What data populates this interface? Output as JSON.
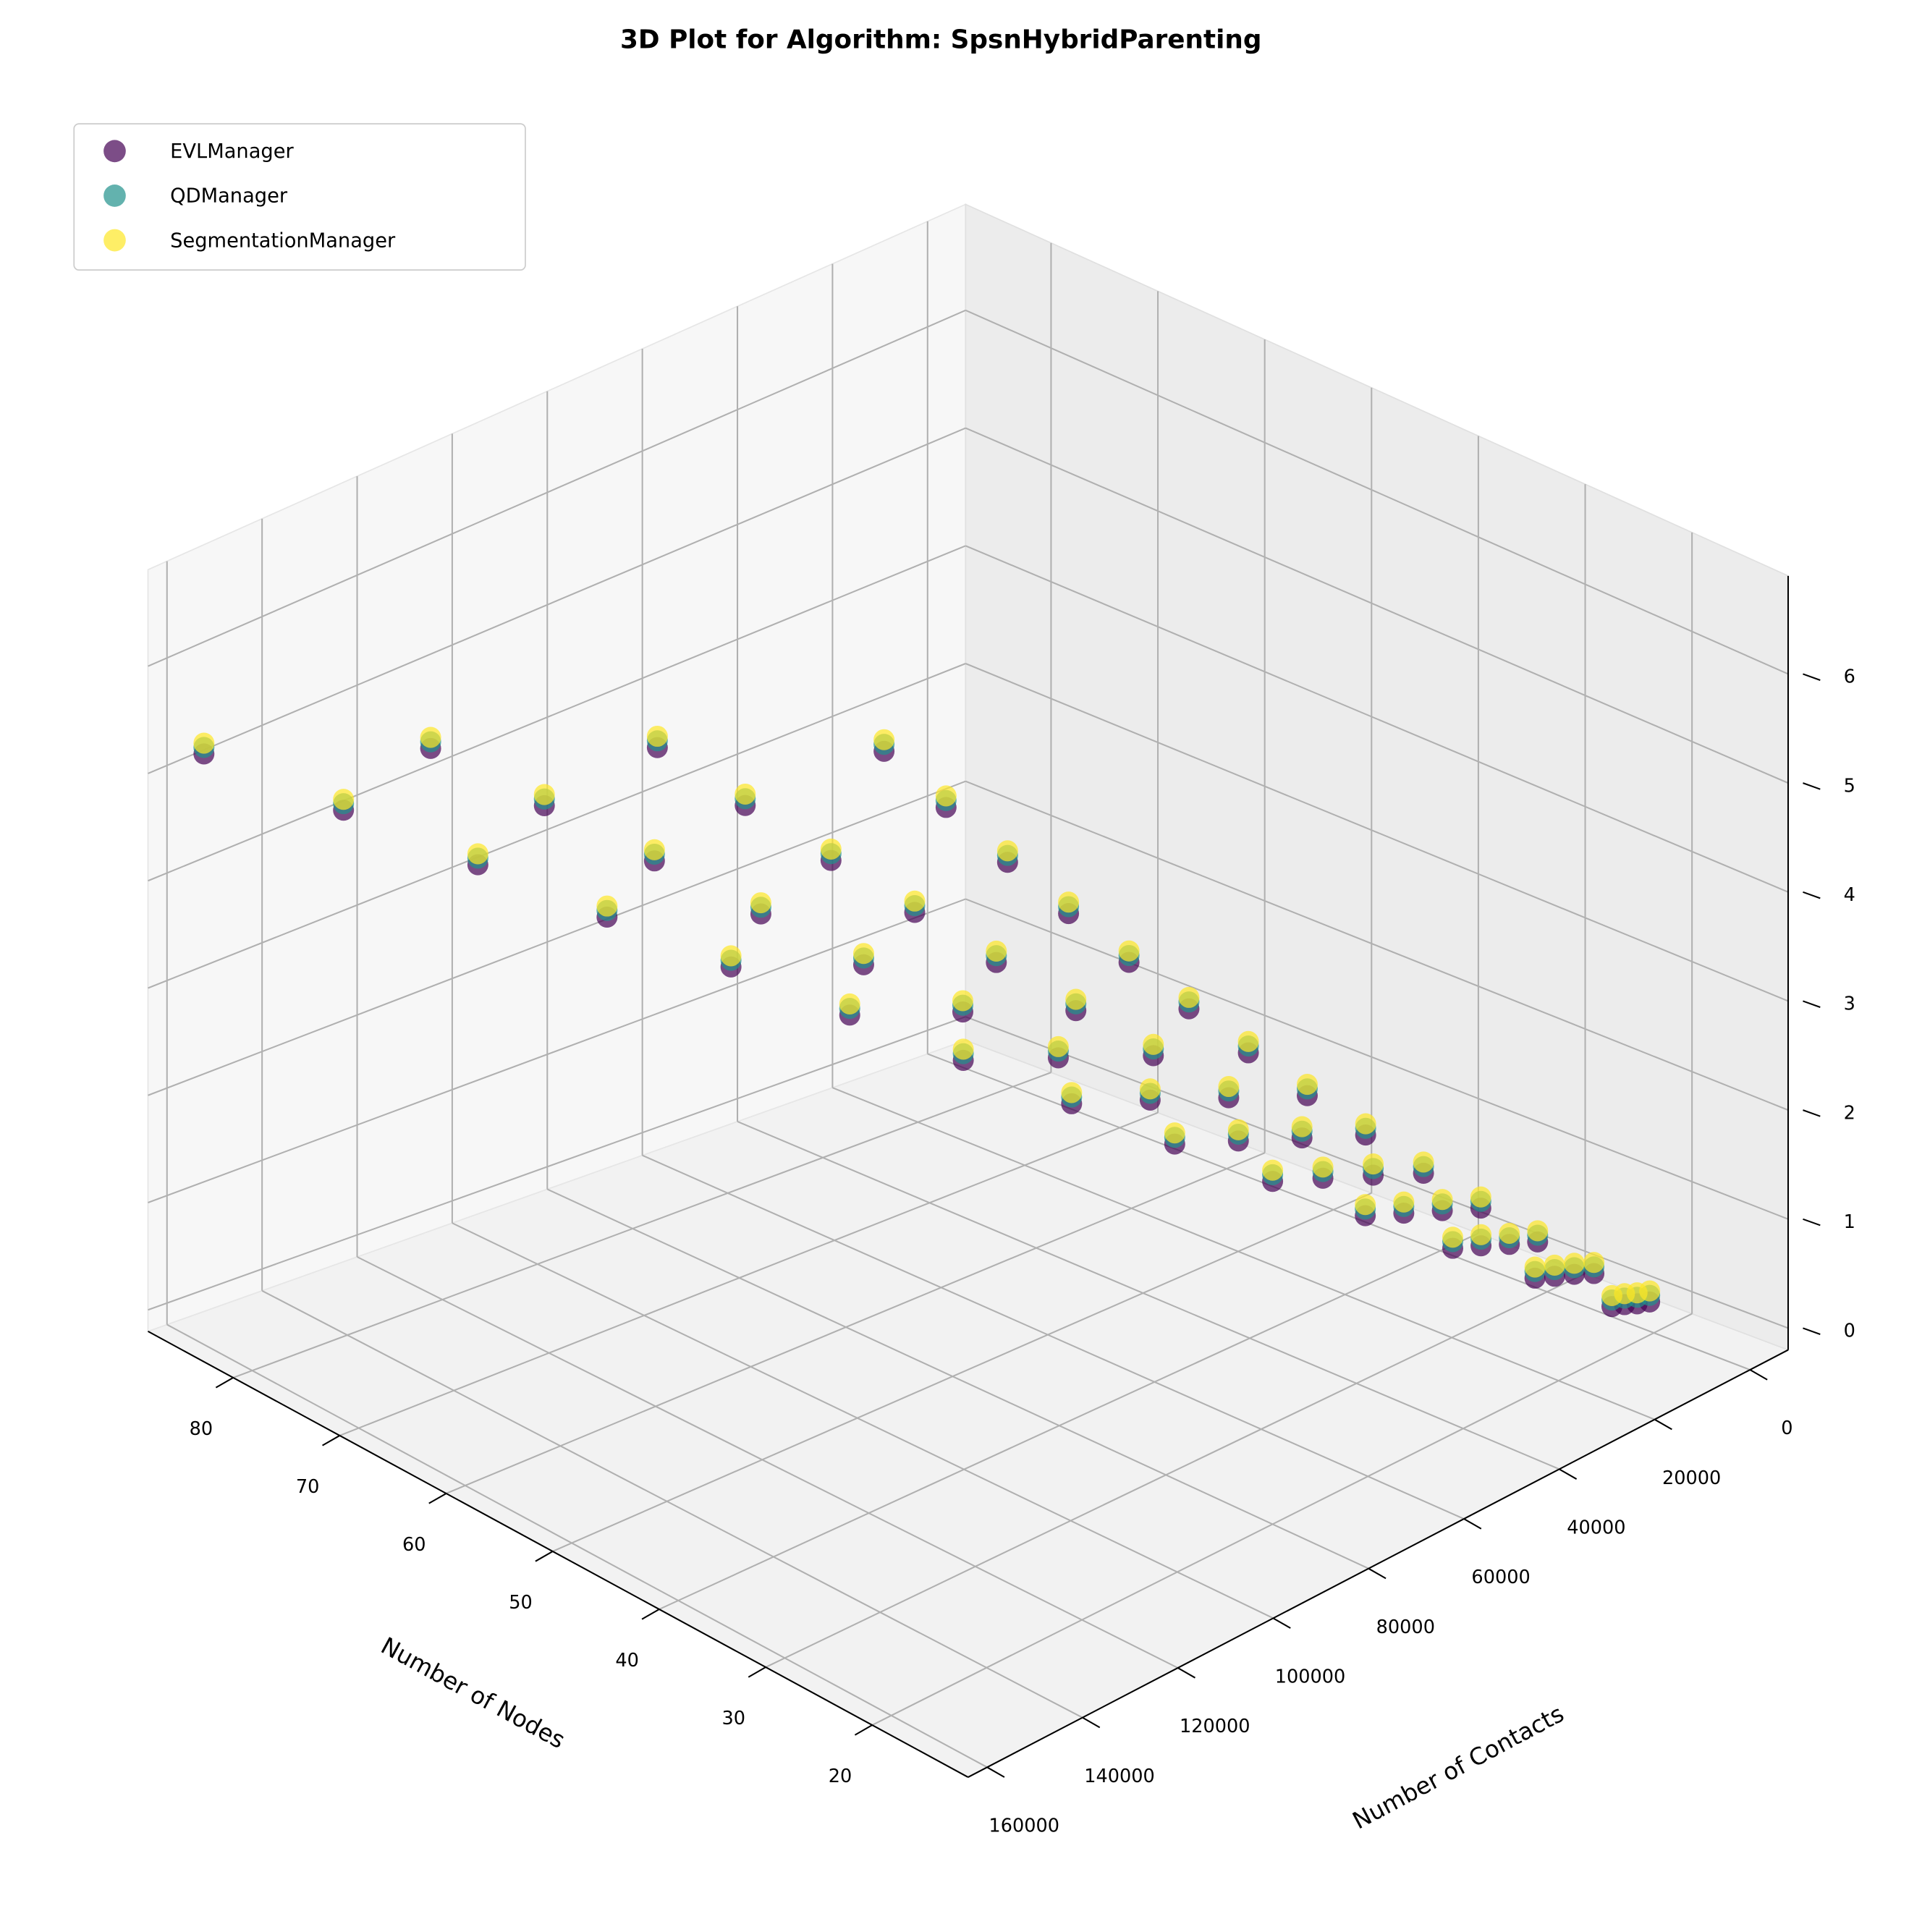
{
  "chart_data": {
    "type": "scatter3d",
    "title": "3D Plot for Algorithm: SpsnHybridParenting",
    "x_label": "Number of Nodes",
    "y_label": "Number of Contacts",
    "xlim": [
      11,
      88
    ],
    "ylim": [
      -8000,
      164000
    ],
    "zlim": [
      -0.2,
      6.9
    ],
    "xticks": [
      20,
      30,
      40,
      50,
      60,
      70,
      80
    ],
    "yticks": [
      0,
      20000,
      40000,
      60000,
      80000,
      100000,
      120000,
      140000,
      160000
    ],
    "zticks": [
      0,
      1,
      2,
      3,
      4,
      5,
      6
    ],
    "grid": true,
    "legend": "upper left",
    "series": [
      {
        "name": "EVLManager",
        "color": "#440154",
        "x": [
          20,
          20,
          20,
          20,
          25,
          25,
          25,
          25,
          30,
          30,
          30,
          30,
          35,
          35,
          35,
          35,
          40,
          40,
          40,
          40,
          45,
          45,
          45,
          45,
          50,
          50,
          50,
          50,
          55,
          55,
          55,
          55,
          60,
          60,
          60,
          60,
          65,
          65,
          65,
          65,
          70,
          70,
          70,
          70,
          75,
          75,
          75,
          75,
          80,
          80,
          80,
          80,
          85,
          85,
          85,
          85
        ],
        "y": [
          880,
          3520,
          6160,
          8800,
          1375,
          5500,
          9625,
          13750,
          1980,
          7920,
          13860,
          19800,
          2695,
          10780,
          18865,
          26950,
          3520,
          14080,
          24640,
          35200,
          4455,
          17820,
          31185,
          44550,
          5500,
          22000,
          38500,
          55000,
          6655,
          26620,
          46585,
          66550,
          7920,
          31680,
          55440,
          79200,
          9295,
          37180,
          65065,
          92950,
          10780,
          43120,
          75460,
          107800,
          12375,
          49500,
          86625,
          123750,
          14080,
          56320,
          98560,
          140800,
          15895,
          63580,
          111265,
          158950
        ],
        "z": [
          0.1,
          0.14,
          0.19,
          0.23,
          0.18,
          0.26,
          0.33,
          0.4,
          0.29,
          0.39,
          0.5,
          0.6,
          0.42,
          0.56,
          0.7,
          0.84,
          0.56,
          0.75,
          0.93,
          1.11,
          0.73,
          0.96,
          1.19,
          1.42,
          0.91,
          1.2,
          1.49,
          1.77,
          1.12,
          1.46,
          1.81,
          2.16,
          1.34,
          1.75,
          2.17,
          2.58,
          1.58,
          2.07,
          2.55,
          3.04,
          1.84,
          2.41,
          2.97,
          3.53,
          2.12,
          2.77,
          3.42,
          4.06,
          2.43,
          3.16,
          3.9,
          4.63,
          2.75,
          3.58,
          4.41,
          5.24
        ]
      },
      {
        "name": "QDManager",
        "color": "#21918c",
        "x": [
          20,
          20,
          20,
          20,
          25,
          25,
          25,
          25,
          30,
          30,
          30,
          30,
          35,
          35,
          35,
          35,
          40,
          40,
          40,
          40,
          45,
          45,
          45,
          45,
          50,
          50,
          50,
          50,
          55,
          55,
          55,
          55,
          60,
          60,
          60,
          60,
          65,
          65,
          65,
          65,
          70,
          70,
          70,
          70,
          75,
          75,
          75,
          75,
          80,
          80,
          80,
          80,
          85,
          85,
          85,
          85
        ],
        "y": [
          880,
          3520,
          6160,
          8800,
          1375,
          5500,
          9625,
          13750,
          1980,
          7920,
          13860,
          19800,
          2695,
          10780,
          18865,
          26950,
          3520,
          14080,
          24640,
          35200,
          4455,
          17820,
          31185,
          44550,
          5500,
          22000,
          38500,
          55000,
          6655,
          26620,
          46585,
          66550,
          7920,
          31680,
          55440,
          79200,
          9295,
          37180,
          65065,
          92950,
          10780,
          43120,
          75460,
          107800,
          12375,
          49500,
          86625,
          123750,
          14080,
          56320,
          98560,
          140800,
          15895,
          63580,
          111265,
          158950
        ],
        "z": [
          0.16,
          0.2,
          0.25,
          0.29,
          0.24,
          0.32,
          0.39,
          0.46,
          0.35,
          0.45,
          0.56,
          0.66,
          0.48,
          0.62,
          0.76,
          0.9,
          0.62,
          0.81,
          0.99,
          1.17,
          0.79,
          1.02,
          1.25,
          1.48,
          0.97,
          1.26,
          1.55,
          1.83,
          1.18,
          1.52,
          1.87,
          2.22,
          1.4,
          1.81,
          2.23,
          2.64,
          1.64,
          2.13,
          2.61,
          3.1,
          1.9,
          2.47,
          3.03,
          3.59,
          2.18,
          2.83,
          3.48,
          4.12,
          2.49,
          3.22,
          3.96,
          4.69,
          2.81,
          3.64,
          4.47,
          5.3
        ]
      },
      {
        "name": "SegmentationManager",
        "color": "#fde725",
        "x": [
          20,
          20,
          20,
          20,
          25,
          25,
          25,
          25,
          30,
          30,
          30,
          30,
          35,
          35,
          35,
          35,
          40,
          40,
          40,
          40,
          45,
          45,
          45,
          45,
          50,
          50,
          50,
          50,
          55,
          55,
          55,
          55,
          60,
          60,
          60,
          60,
          65,
          65,
          65,
          65,
          70,
          70,
          70,
          70,
          75,
          75,
          75,
          75,
          80,
          80,
          80,
          80,
          85,
          85,
          85,
          85
        ],
        "y": [
          880,
          3520,
          6160,
          8800,
          1375,
          5500,
          9625,
          13750,
          1980,
          7920,
          13860,
          19800,
          2695,
          10780,
          18865,
          26950,
          3520,
          14080,
          24640,
          35200,
          4455,
          17820,
          31185,
          44550,
          5500,
          22000,
          38500,
          55000,
          6655,
          26620,
          46585,
          66550,
          7920,
          31680,
          55440,
          79200,
          9295,
          37180,
          65065,
          92950,
          10780,
          43120,
          75460,
          107800,
          12375,
          49500,
          86625,
          123750,
          14080,
          56320,
          98560,
          140800,
          15895,
          63580,
          111265,
          158950
        ],
        "z": [
          0.2,
          0.24,
          0.29,
          0.33,
          0.28,
          0.36,
          0.43,
          0.5,
          0.39,
          0.49,
          0.6,
          0.7,
          0.52,
          0.66,
          0.8,
          0.94,
          0.66,
          0.85,
          1.03,
          1.21,
          0.83,
          1.06,
          1.29,
          1.52,
          1.01,
          1.3,
          1.59,
          1.87,
          1.22,
          1.56,
          1.91,
          2.26,
          1.44,
          1.85,
          2.27,
          2.68,
          1.68,
          2.17,
          2.65,
          3.14,
          1.94,
          2.51,
          3.07,
          3.63,
          2.22,
          2.87,
          3.52,
          4.16,
          2.53,
          3.26,
          4.0,
          4.73,
          2.85,
          3.68,
          4.51,
          5.34
        ]
      }
    ]
  }
}
